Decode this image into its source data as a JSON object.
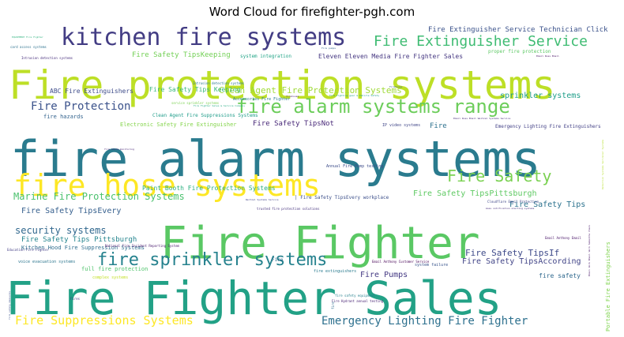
{
  "chart_data": {
    "type": "wordcloud",
    "title": "Word Cloud for firefighter-pgh.com",
    "words": [
      {
        "text": "fire alarm systems",
        "weight": 62,
        "color": "#2a7b8e"
      },
      {
        "text": "Fire Fighter Sales",
        "weight": 60,
        "color": "#22a186"
      },
      {
        "text": "Fire Fighter",
        "weight": 58,
        "color": "#5ac864"
      },
      {
        "text": "Fire protection systems",
        "weight": 50,
        "color": "#bddf26"
      },
      {
        "text": "fire hose systems",
        "weight": 38,
        "color": "#fde725"
      },
      {
        "text": "kitchen fire systems",
        "weight": 29,
        "color": "#433d84"
      },
      {
        "text": "fire alarm systems range",
        "weight": 24,
        "color": "#6ccd5a"
      },
      {
        "text": "fire sprinkler systems",
        "weight": 22,
        "color": "#26828e"
      },
      {
        "text": "Fire Safety",
        "weight": 20,
        "color": "#7ad151"
      },
      {
        "text": "Fire Extinguisher Service",
        "weight": 18,
        "color": "#3fbc73"
      },
      {
        "text": "Fire Suppressions Systems",
        "weight": 16,
        "color": "#fde725"
      },
      {
        "text": "Emergency Lighting Fire Fighter",
        "weight": 15,
        "color": "#2d708e"
      },
      {
        "text": "Fire Protection",
        "weight": 14,
        "color": "#3b528b"
      },
      {
        "text": "Marine Fire Protection Systems",
        "weight": 12,
        "color": "#4ac16d"
      },
      {
        "text": "security systems",
        "weight": 12,
        "color": "#31688e"
      },
      {
        "text": "Clean Agent Fire Protection Systems",
        "weight": 11,
        "color": "#a0da39"
      },
      {
        "text": "Fire Safety TipsIf",
        "weight": 11,
        "color": "#3e4a89"
      },
      {
        "text": "Fire Safety TipsEvery",
        "weight": 10,
        "color": "#355f8d"
      },
      {
        "text": "Fire Safety TipsPittsburgh",
        "weight": 10,
        "color": "#5ec962"
      },
      {
        "text": "Fire Safety Tips",
        "weight": 10,
        "color": "#2c728e"
      },
      {
        "text": "sprinkler systems",
        "weight": 10,
        "color": "#1f9e89"
      },
      {
        "text": "Fire Pumps",
        "weight": 10,
        "color": "#443983"
      },
      {
        "text": "Fire Safety TipsAccording",
        "weight": 10,
        "color": "#414487"
      },
      {
        "text": "Fire Safety TipsNot",
        "weight": 9,
        "color": "#482878"
      },
      {
        "text": "Fire Safety Tips Pittsburgh",
        "weight": 9,
        "color": "#25858e"
      },
      {
        "text": "Fire Extinguisher Service Technician Click",
        "weight": 9,
        "color": "#3b528b"
      },
      {
        "text": "Fire Safety TipsKeeping",
        "weight": 9,
        "color": "#73d056"
      },
      {
        "text": "Paint Booth Fire Protection Systems",
        "weight": 8,
        "color": "#29af7f"
      },
      {
        "text": "Eleven Eleven Media Fire Fighter Sales",
        "weight": 8,
        "color": "#453781"
      },
      {
        "text": "ABC Fire Extinguishers",
        "weight": 8,
        "color": "#3e4c8a"
      },
      {
        "text": "fire safety",
        "weight": 8,
        "color": "#30698e"
      },
      {
        "text": "Fire Safety Tips Keeping",
        "weight": 8,
        "color": "#37b878"
      },
      {
        "text": "Fire",
        "weight": 9,
        "color": "#2d718e"
      },
      {
        "text": "full fire protection",
        "weight": 7,
        "color": "#4ec36b"
      },
      {
        "text": "Electronic Safety Fire Extinguisher",
        "weight": 7,
        "color": "#84d44b"
      },
      {
        "text": "fire hazards",
        "weight": 7,
        "color": "#33638d"
      },
      {
        "text": "Kitchen Hood Fire Suppression Systems",
        "weight": 7,
        "color": "#2e6e8e"
      },
      {
        "text": "Emergency Lighting Fire Extinguishers",
        "weight": 6,
        "color": "#424086"
      },
      {
        "text": "| Fire Safety TipsEvery workplace",
        "weight": 6,
        "color": "#3c4f8a"
      },
      {
        "text": "Portable Fire Extinguishers",
        "weight": 7,
        "color": "#7fd34e"
      },
      {
        "text": "proper fire protection",
        "weight": 6,
        "color": "#5cc863"
      },
      {
        "text": "Clean Agent Fire Suppressions Systems",
        "weight": 6,
        "color": "#1e9c89"
      },
      {
        "text": "system integration",
        "weight": 6,
        "color": "#20a486"
      },
      {
        "text": "voice evacuation systems",
        "weight": 5,
        "color": "#2b758e"
      },
      {
        "text": "fire extinguishers",
        "weight": 5,
        "color": "#297a8e"
      },
      {
        "text": "complex systems",
        "weight": 5,
        "color": "#c2df23"
      },
      {
        "text": "Annual Fire Pump testing",
        "weight": 5,
        "color": "#3d4d8a"
      },
      {
        "text": "IP video systems",
        "weight": 5,
        "color": "#404688"
      },
      {
        "text": "Accessories Fire Fighter",
        "weight": 5,
        "color": "#287d8e"
      },
      {
        "text": "system failure",
        "weight": 5,
        "color": "#39558c"
      },
      {
        "text": "fire safety equipment",
        "weight": 4,
        "color": "#27808e"
      },
      {
        "text": "Fire Hydrant annual testing",
        "weight": 4,
        "color": "#482374"
      },
      {
        "text": "card access systems",
        "weight": 4,
        "color": "#2c718e"
      },
      {
        "text": "Intrusion detection systems",
        "weight": 4,
        "color": "#472e7c"
      },
      {
        "text": "National Fire Incident Reporting System",
        "weight": 4,
        "color": "#481a6c"
      },
      {
        "text": "trusted fire protection solutions",
        "weight": 4,
        "color": "#46327e"
      },
      {
        "text": "Email Anthony Email",
        "weight": 4,
        "color": "#481467"
      },
      {
        "text": "Cloudflare Email Protection",
        "weight": 4,
        "color": "#3f4788"
      },
      {
        "text": "EQUIPMENT Fire Fighter",
        "weight": 3,
        "color": "#2db27d"
      },
      {
        "text": "fire alarm monitoring",
        "weight": 3,
        "color": "#482576"
      },
      {
        "text": "service sprinkler systems",
        "weight": 4,
        "color": "#7ad151"
      },
      {
        "text": "Intrusion detection systems",
        "weight": 4,
        "color": "#2a788e"
      },
      {
        "text": "Email Russ Email",
        "weight": 3,
        "color": "#471063"
      },
      {
        "text": "Fire",
        "weight": 6,
        "color": "#2f6b8e"
      },
      {
        "text": "firehouse",
        "weight": 3,
        "color": "#482173"
      },
      {
        "text": "Fire pumps",
        "weight": 3,
        "color": "#32648e"
      },
      {
        "text": "Firehouse",
        "weight": 3,
        "color": "#38588c"
      },
      {
        "text": "Fires",
        "weight": 4,
        "color": "#46327e"
      },
      {
        "text": "fire safety measures",
        "weight": 3,
        "color": "#3a548c"
      },
      {
        "text": "Education Fire Fighter",
        "weight": 4,
        "color": "#433e85"
      },
      {
        "text": "Email Anthony Customer Service",
        "weight": 4,
        "color": "#440154"
      },
      {
        "text": "mass notification alerting systems",
        "weight": 3,
        "color": "#472d7b"
      },
      {
        "text": "Email Work Email Work Samantha Check",
        "weight": 3,
        "color": "#481769"
      },
      {
        "text": "Detection Systems Sprinkler Systems",
        "weight": 3,
        "color": "#b5de2b"
      },
      {
        "text": "Sales Email",
        "weight": 3,
        "color": "#5ec962"
      },
      {
        "text": "Email Russ Email Weitzel Systems Service",
        "weight": 3,
        "color": "#472a7a"
      },
      {
        "text": "Weitzel Systems Service",
        "weight": 3,
        "color": "#414287"
      },
      {
        "text": "fire",
        "weight": 4,
        "color": "#2e6d8e"
      },
      {
        "text": "Fire Fighter Sales & Service Company",
        "weight": 3,
        "color": "#25ab82"
      },
      {
        "text": "Fire fighting gear & Vehicle Safety",
        "weight": 3,
        "color": "#1f9a8a"
      }
    ]
  }
}
